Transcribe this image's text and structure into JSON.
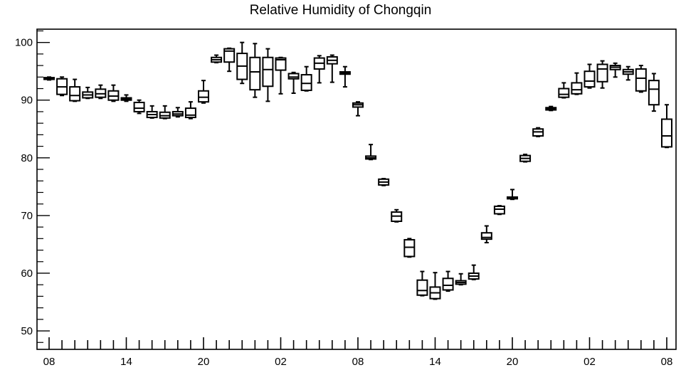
{
  "chart_data": {
    "type": "box",
    "title": "Relative Humidity of Chongqin",
    "xlabel": "",
    "ylabel": "",
    "ylim": [
      46.8,
      102.3
    ],
    "y_ticks": [
      50,
      60,
      70,
      80,
      90,
      100
    ],
    "x_tick_labels": [
      "08",
      "14",
      "20",
      "02",
      "08",
      "14",
      "20",
      "02",
      "08"
    ],
    "x_tick_hours": [
      0,
      6,
      12,
      18,
      24,
      30,
      36,
      42,
      48
    ],
    "grid": false,
    "legend": "none",
    "line_color": "#000000",
    "boxes": [
      {
        "hour": 0,
        "whisker_low": 93.5,
        "q1": 93.6,
        "median": 93.7,
        "q3": 93.9,
        "whisker_high": 94.0
      },
      {
        "hour": 1,
        "whisker_low": 90.8,
        "q1": 91.0,
        "median": 92.3,
        "q3": 93.7,
        "whisker_high": 94.0
      },
      {
        "hour": 2,
        "whisker_low": 89.8,
        "q1": 89.9,
        "median": 90.8,
        "q3": 92.3,
        "whisker_high": 93.6
      },
      {
        "hour": 3,
        "whisker_low": 90.3,
        "q1": 90.4,
        "median": 90.9,
        "q3": 91.4,
        "whisker_high": 92.2
      },
      {
        "hour": 4,
        "whisker_low": 90.3,
        "q1": 90.5,
        "median": 91.1,
        "q3": 91.9,
        "whisker_high": 92.6
      },
      {
        "hour": 5,
        "whisker_low": 89.8,
        "q1": 90.0,
        "median": 90.7,
        "q3": 91.6,
        "whisker_high": 92.6
      },
      {
        "hour": 6,
        "whisker_low": 89.8,
        "q1": 90.0,
        "median": 90.2,
        "q3": 90.4,
        "whisker_high": 90.9
      },
      {
        "hour": 7,
        "whisker_low": 87.7,
        "q1": 88.0,
        "median": 88.6,
        "q3": 89.6,
        "whisker_high": 90.0
      },
      {
        "hour": 8,
        "whisker_low": 86.9,
        "q1": 87.0,
        "median": 87.5,
        "q3": 88.0,
        "whisker_high": 89.0
      },
      {
        "hour": 9,
        "whisker_low": 86.8,
        "q1": 86.9,
        "median": 87.3,
        "q3": 87.9,
        "whisker_high": 89.0
      },
      {
        "hour": 10,
        "whisker_low": 87.1,
        "q1": 87.3,
        "median": 87.6,
        "q3": 88.0,
        "whisker_high": 88.7
      },
      {
        "hour": 11,
        "whisker_low": 86.8,
        "q1": 87.0,
        "median": 87.4,
        "q3": 88.6,
        "whisker_high": 89.7
      },
      {
        "hour": 12,
        "whisker_low": 89.5,
        "q1": 89.7,
        "median": 90.5,
        "q3": 91.6,
        "whisker_high": 93.4
      },
      {
        "hour": 13,
        "whisker_low": 96.5,
        "q1": 96.6,
        "median": 97.0,
        "q3": 97.4,
        "whisker_high": 97.8
      },
      {
        "hour": 14,
        "whisker_low": 95.0,
        "q1": 96.6,
        "median": 98.5,
        "q3": 98.9,
        "whisker_high": 99.0
      },
      {
        "hour": 15,
        "whisker_low": 92.9,
        "q1": 93.6,
        "median": 95.9,
        "q3": 98.1,
        "whisker_high": 100.0
      },
      {
        "hour": 16,
        "whisker_low": 90.5,
        "q1": 91.8,
        "median": 94.9,
        "q3": 97.4,
        "whisker_high": 99.8
      },
      {
        "hour": 17,
        "whisker_low": 89.8,
        "q1": 92.4,
        "median": 95.3,
        "q3": 97.4,
        "whisker_high": 98.9
      },
      {
        "hour": 18,
        "whisker_low": 91.1,
        "q1": 95.2,
        "median": 97.0,
        "q3": 97.3,
        "whisker_high": 97.4
      },
      {
        "hour": 19,
        "whisker_low": 91.2,
        "q1": 93.7,
        "median": 94.0,
        "q3": 94.6,
        "whisker_high": 94.8
      },
      {
        "hour": 20,
        "whisker_low": 91.6,
        "q1": 91.7,
        "median": 92.9,
        "q3": 94.4,
        "whisker_high": 95.8
      },
      {
        "hour": 21,
        "whisker_low": 93.0,
        "q1": 95.4,
        "median": 96.4,
        "q3": 97.3,
        "whisker_high": 97.7
      },
      {
        "hour": 22,
        "whisker_low": 93.1,
        "q1": 96.3,
        "median": 96.9,
        "q3": 97.5,
        "whisker_high": 97.8
      },
      {
        "hour": 23,
        "whisker_low": 92.3,
        "q1": 94.5,
        "median": 94.7,
        "q3": 94.9,
        "whisker_high": 95.8
      },
      {
        "hour": 24,
        "whisker_low": 87.3,
        "q1": 88.8,
        "median": 89.2,
        "q3": 89.5,
        "whisker_high": 89.7
      },
      {
        "hour": 25,
        "whisker_low": 79.7,
        "q1": 79.8,
        "median": 80.0,
        "q3": 80.3,
        "whisker_high": 82.3
      },
      {
        "hour": 26,
        "whisker_low": 75.2,
        "q1": 75.3,
        "median": 75.8,
        "q3": 76.3,
        "whisker_high": 76.4
      },
      {
        "hour": 27,
        "whisker_low": 68.9,
        "q1": 69.0,
        "median": 69.9,
        "q3": 70.6,
        "whisker_high": 71.0
      },
      {
        "hour": 28,
        "whisker_low": 62.8,
        "q1": 62.9,
        "median": 64.5,
        "q3": 65.8,
        "whisker_high": 66.0
      },
      {
        "hour": 29,
        "whisker_low": 56.1,
        "q1": 56.2,
        "median": 57.0,
        "q3": 58.8,
        "whisker_high": 60.3
      },
      {
        "hour": 30,
        "whisker_low": 55.5,
        "q1": 55.6,
        "median": 56.6,
        "q3": 57.6,
        "whisker_high": 60.1
      },
      {
        "hour": 31,
        "whisker_low": 56.9,
        "q1": 57.1,
        "median": 57.9,
        "q3": 59.1,
        "whisker_high": 60.3
      },
      {
        "hour": 32,
        "whisker_low": 58.0,
        "q1": 58.1,
        "median": 58.4,
        "q3": 58.7,
        "whisker_high": 59.9
      },
      {
        "hour": 33,
        "whisker_low": 58.9,
        "q1": 59.0,
        "median": 59.5,
        "q3": 60.0,
        "whisker_high": 61.4
      },
      {
        "hour": 34,
        "whisker_low": 65.3,
        "q1": 65.9,
        "median": 66.2,
        "q3": 67.0,
        "whisker_high": 68.2
      },
      {
        "hour": 35,
        "whisker_low": 70.2,
        "q1": 70.3,
        "median": 71.1,
        "q3": 71.6,
        "whisker_high": 71.7
      },
      {
        "hour": 36,
        "whisker_low": 72.8,
        "q1": 72.9,
        "median": 73.0,
        "q3": 73.2,
        "whisker_high": 74.5
      },
      {
        "hour": 37,
        "whisker_low": 79.3,
        "q1": 79.4,
        "median": 79.9,
        "q3": 80.4,
        "whisker_high": 80.6
      },
      {
        "hour": 38,
        "whisker_low": 83.7,
        "q1": 83.8,
        "median": 84.5,
        "q3": 85.0,
        "whisker_high": 85.2
      },
      {
        "hour": 39,
        "whisker_low": 88.2,
        "q1": 88.3,
        "median": 88.5,
        "q3": 88.7,
        "whisker_high": 88.9
      },
      {
        "hour": 40,
        "whisker_low": 90.4,
        "q1": 90.5,
        "median": 91.0,
        "q3": 92.0,
        "whisker_high": 93.0
      },
      {
        "hour": 41,
        "whisker_low": 91.0,
        "q1": 91.1,
        "median": 91.8,
        "q3": 93.0,
        "whisker_high": 94.7
      },
      {
        "hour": 42,
        "whisker_low": 92.1,
        "q1": 92.3,
        "median": 93.3,
        "q3": 95.0,
        "whisker_high": 96.2
      },
      {
        "hour": 43,
        "whisker_low": 92.1,
        "q1": 93.2,
        "median": 95.4,
        "q3": 96.2,
        "whisker_high": 96.8
      },
      {
        "hour": 44,
        "whisker_low": 94.0,
        "q1": 95.3,
        "median": 95.7,
        "q3": 96.0,
        "whisker_high": 96.4
      },
      {
        "hour": 45,
        "whisker_low": 93.5,
        "q1": 94.5,
        "median": 94.9,
        "q3": 95.3,
        "whisker_high": 95.8
      },
      {
        "hour": 46,
        "whisker_low": 91.4,
        "q1": 91.6,
        "median": 93.8,
        "q3": 95.4,
        "whisker_high": 96.0
      },
      {
        "hour": 47,
        "whisker_low": 88.1,
        "q1": 89.2,
        "median": 91.9,
        "q3": 93.4,
        "whisker_high": 94.6
      },
      {
        "hour": 48,
        "whisker_low": 81.8,
        "q1": 81.9,
        "median": 83.8,
        "q3": 86.7,
        "whisker_high": 89.2
      }
    ]
  }
}
